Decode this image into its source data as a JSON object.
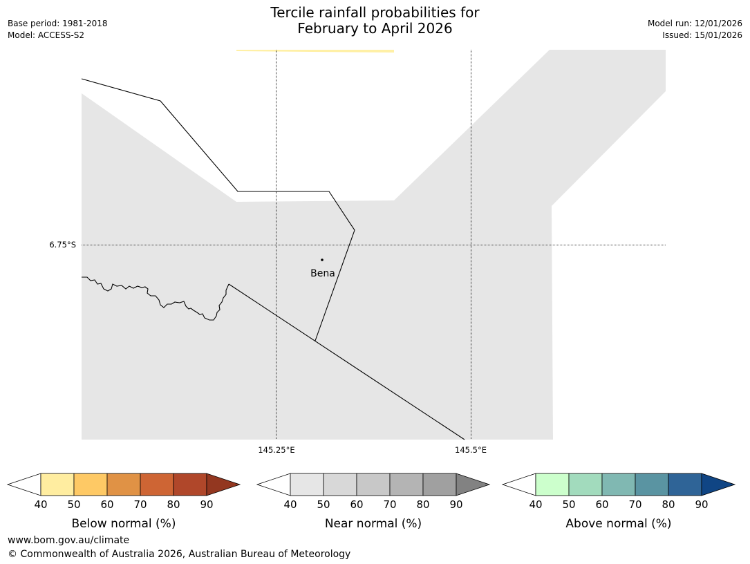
{
  "header": {
    "title_line1": "Tercile rainfall probabilities for",
    "title_line2": "February to April 2026",
    "base_period": "Base period: 1981-2018",
    "model": "Model: ACCESS-S2",
    "model_run": "Model run: 12/01/2026",
    "issued": "Issued: 15/01/2026"
  },
  "map": {
    "lat_label": "6.75°S",
    "lon_labels": [
      "145.25°E",
      "145.5°E"
    ],
    "place": "Bena",
    "colors": {
      "land_near_normal": "#e6e6e6",
      "below_tint": "#fff0a6",
      "border": "#000000"
    }
  },
  "legends": [
    {
      "title": "Below normal (%)",
      "ticks": [
        "40",
        "50",
        "60",
        "70",
        "80",
        "90"
      ],
      "under_color": "#ffffff",
      "colors": [
        "#ffeda0",
        "#fec965",
        "#e09245",
        "#ce6534",
        "#b0472a"
      ],
      "over_color": "#933720"
    },
    {
      "title": "Near normal (%)",
      "ticks": [
        "40",
        "50",
        "60",
        "70",
        "80",
        "90"
      ],
      "under_color": "#ffffff",
      "colors": [
        "#e6e6e6",
        "#d8d8d8",
        "#c8c8c8",
        "#b4b4b4",
        "#a0a0a0"
      ],
      "over_color": "#828282"
    },
    {
      "title": "Above normal (%)",
      "ticks": [
        "40",
        "50",
        "60",
        "70",
        "80",
        "90"
      ],
      "under_color": "#ffffff",
      "colors": [
        "#ccffcc",
        "#a2dbbd",
        "#80b8b2",
        "#5a94a2",
        "#2f6497"
      ],
      "over_color": "#104584"
    }
  ],
  "footer": {
    "url": "www.bom.gov.au/climate",
    "copyright": "© Commonwealth of Australia 2026, Australian Bureau of Meteorology"
  }
}
